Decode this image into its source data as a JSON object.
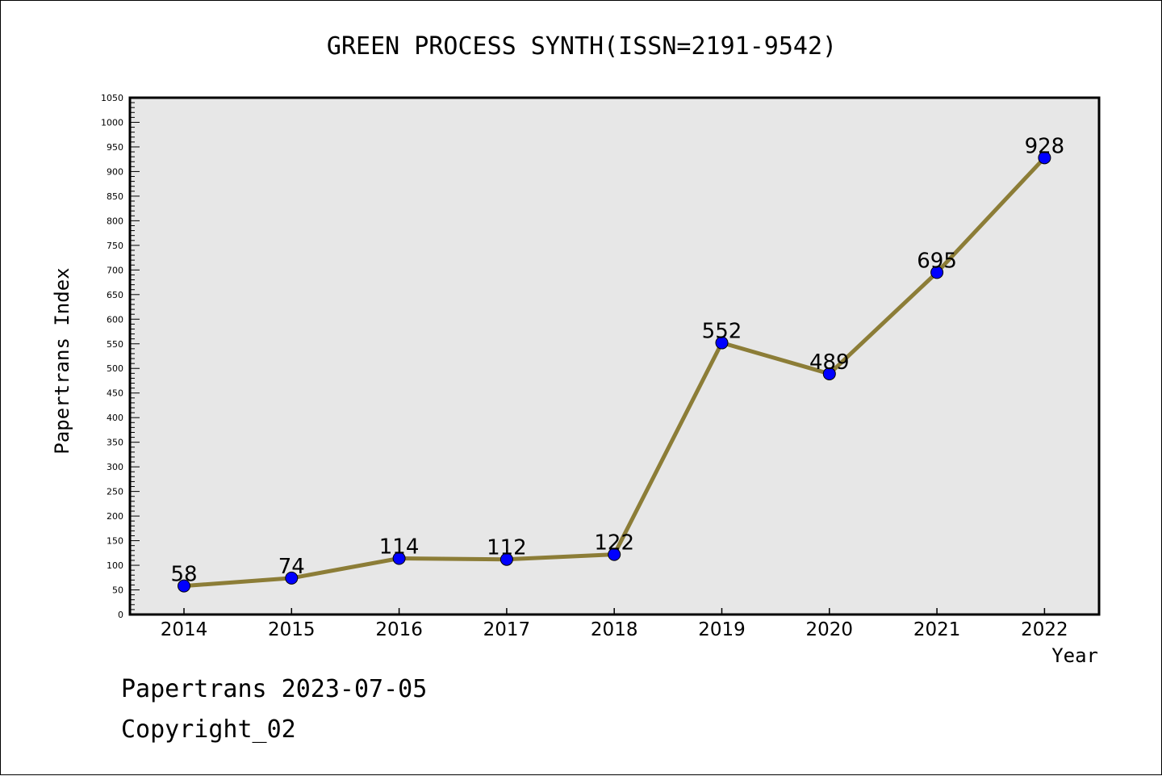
{
  "chart_data": {
    "type": "line",
    "title": "GREEN PROCESS SYNTH(ISSN=2191-9542)",
    "xlabel": "Year",
    "ylabel": "Papertrans Index",
    "x": [
      "2014",
      "2015",
      "2016",
      "2017",
      "2018",
      "2019",
      "2020",
      "2021",
      "2022"
    ],
    "series": [
      {
        "values": [
          58,
          74,
          114,
          112,
          122,
          552,
          489,
          695,
          928
        ],
        "line_color": "#8c7d37",
        "marker_color": "#0000ff"
      }
    ],
    "data_labels": [
      "58",
      "74",
      "114",
      "112",
      "122",
      "552",
      "489",
      "695",
      "928"
    ],
    "ylim": [
      0,
      1050
    ],
    "y_ticks": [
      "0",
      "50",
      "100",
      "150",
      "200",
      "250",
      "300",
      "350",
      "400",
      "450",
      "500",
      "550",
      "600",
      "650",
      "700",
      "750",
      "800",
      "850",
      "900",
      "950",
      "1000",
      "1050"
    ],
    "plot_background": "#e7e7e7",
    "grid": false,
    "legend": "none"
  },
  "footer": {
    "line1": "Papertrans 2023-07-05",
    "line2": "Copyright_02"
  }
}
